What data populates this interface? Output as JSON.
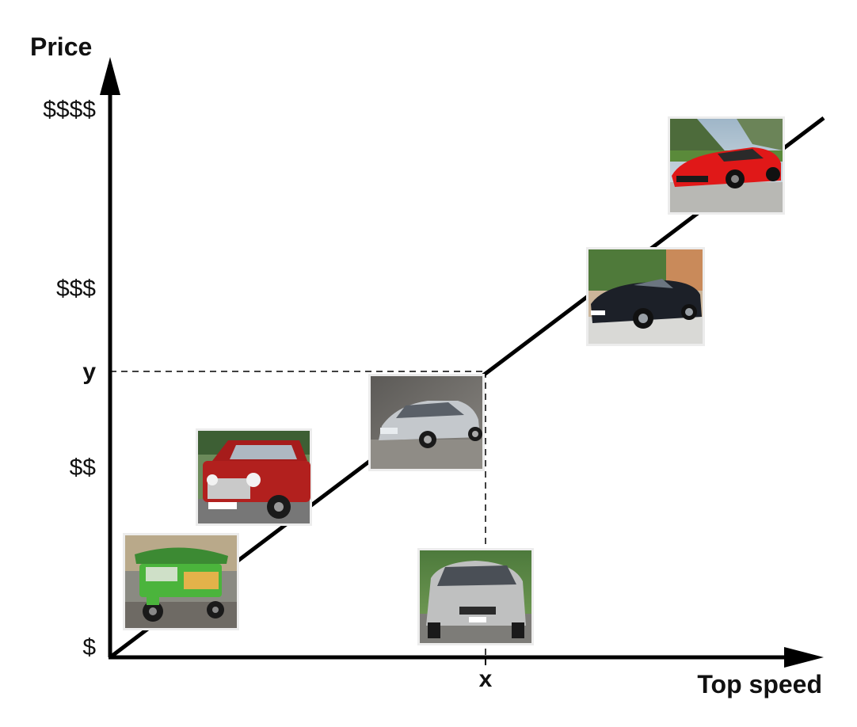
{
  "axes": {
    "y_title": "Price",
    "x_title": "Top speed",
    "y_ticks": [
      "$$$$",
      "$$$",
      "$$",
      "$"
    ],
    "y_marker": "y",
    "x_marker": "x"
  },
  "vehicles": [
    {
      "name": "tuk-tuk",
      "body_color": "#4bb43c"
    },
    {
      "name": "mini-classic",
      "body_color": "#b2201e"
    },
    {
      "name": "sedan-silver",
      "body_color": "#c4c8cc"
    },
    {
      "name": "hatchback-silver",
      "body_color": "#bfc0c0"
    },
    {
      "name": "convertible-black",
      "body_color": "#1c2028"
    },
    {
      "name": "sports-car-red",
      "body_color": "#e01818"
    }
  ],
  "colors": {
    "line": "#000000",
    "text": "#111111",
    "photo_border": "#e0e0e0"
  }
}
